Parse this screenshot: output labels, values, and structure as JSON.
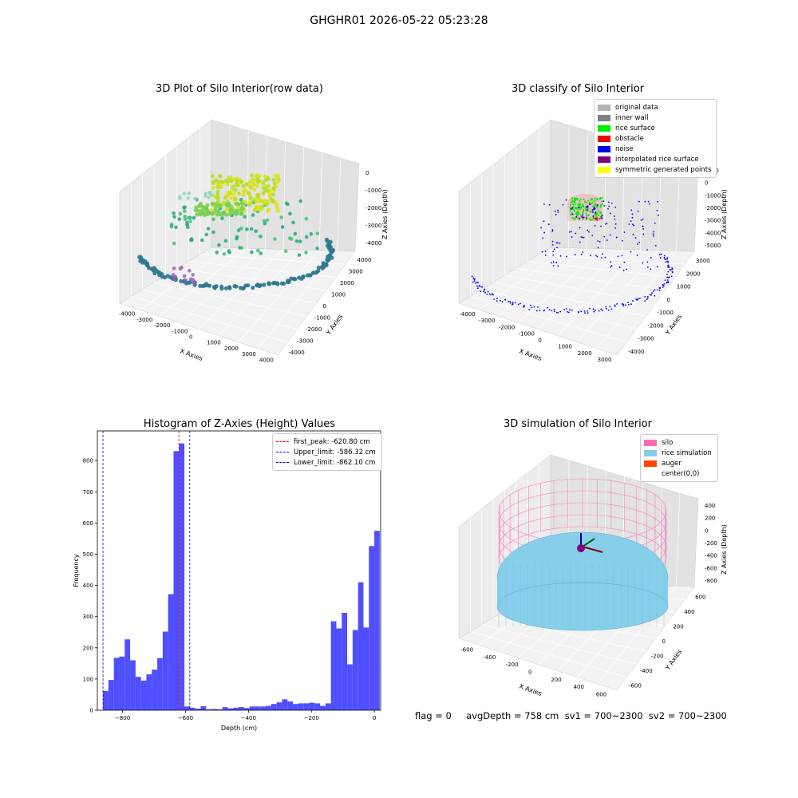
{
  "suptitle": "GHGHR01 2026-05-22 05:23:28",
  "footer": "flag = 0     avgDepth = 758 cm  sv1 = 700~2300  sv2 = 700~2300",
  "colors": {
    "histogram_bar": "#4f4fff",
    "first_peak": "#ff0000",
    "limit_lines": "#0000cc",
    "original_data": "#b3b3b3",
    "inner_wall": "#808080",
    "rice_surface": "#00ee00",
    "obstacle": "#ee0000",
    "noise": "#0000ee",
    "interpolated": "#800080",
    "symmetric": "#ffff00",
    "silo": "#ff69b4",
    "rice_sim": "#87ceeb",
    "auger": "#ff4500"
  },
  "chart_data": [
    {
      "type": "scatter",
      "title": "3D Plot of Silo Interior(row data)",
      "xlabel": "X Axies",
      "ylabel": "Y Axies",
      "zlabel": "Z Axies (Depth)",
      "xticks": [
        "-4000",
        "-3000",
        "-2000",
        "-1000",
        "0",
        "1000",
        "2000",
        "3000",
        "4000"
      ],
      "yticks": [
        "-4000",
        "-3000",
        "-2000",
        "-1000",
        "0",
        "1000",
        "2000",
        "3000",
        "4000"
      ],
      "zticks": [
        "0",
        "-1000",
        "-2000",
        "-3000",
        "-4000"
      ],
      "colormap": "viridis"
    },
    {
      "type": "scatter",
      "title": "3D classify of Silo Interior",
      "xlabel": "X Axies",
      "ylabel": "Y Axies",
      "zlabel": "Z Axies (Depth)",
      "xticks": [
        "-4000",
        "-3000",
        "-2000",
        "-1000",
        "0",
        "1000",
        "2000",
        "3000"
      ],
      "yticks": [
        "-4000",
        "-3000",
        "-2000",
        "-1000",
        "0",
        "1000",
        "2000",
        "3000"
      ],
      "zticks": [
        "1000",
        "0",
        "-1000",
        "-2000",
        "-3000",
        "-4000",
        "-5000"
      ],
      "legend": [
        "original data",
        "inner wall",
        "rice surface",
        "obstacle",
        "noise",
        "interpolated rice surface",
        "symmetric generated points"
      ],
      "legend_position": "top-right"
    },
    {
      "type": "bar",
      "title": "Histogram of Z-Axies (Height) Values",
      "xlabel": "Depth (cm)",
      "ylabel": "Frequency",
      "xlim": [
        -880,
        20
      ],
      "ylim": [
        0,
        895
      ],
      "xticks": [
        -800,
        -600,
        -400,
        -200,
        0
      ],
      "yticks": [
        0,
        100,
        200,
        300,
        400,
        500,
        600,
        700,
        800
      ],
      "bin_start": -862.1,
      "bin_width": 17.24,
      "values": [
        62,
        97,
        168,
        172,
        227,
        160,
        107,
        95,
        115,
        130,
        167,
        252,
        372,
        830,
        855,
        12,
        8,
        5,
        13,
        3,
        4,
        3,
        10,
        6,
        8,
        10,
        7,
        12,
        12,
        12,
        14,
        20,
        25,
        35,
        28,
        20,
        22,
        22,
        24,
        22,
        14,
        22,
        285,
        262,
        312,
        147,
        257,
        410,
        265,
        526,
        575
      ],
      "vlines": [
        {
          "label": "first_peak: -620.80 cm",
          "x": -620.8,
          "color": "#ff0000"
        },
        {
          "label": "Upper_limit: -586.32 cm",
          "x": -586.32,
          "color": "#0000cc"
        },
        {
          "label": "Lower_limit: -862.10 cm",
          "x": -862.1,
          "color": "#0000cc"
        }
      ],
      "legend_position": "top-right"
    },
    {
      "type": "surface",
      "title": "3D simulation of Silo Interior",
      "xlabel": "X Axies",
      "ylabel": "Y Axies",
      "zlabel": "Z Axies (Depth)",
      "xticks": [
        "-600",
        "-400",
        "-200",
        "0",
        "200",
        "400",
        "600"
      ],
      "yticks": [
        "-600",
        "-400",
        "-200",
        "0",
        "200",
        "400",
        "600"
      ],
      "zticks": [
        "400",
        "200",
        "0",
        "-200",
        "-400",
        "-600",
        "-800"
      ],
      "legend": [
        "silo",
        "rice simulation",
        "auger",
        "center(0,0)"
      ],
      "legend_position": "top-right"
    }
  ]
}
